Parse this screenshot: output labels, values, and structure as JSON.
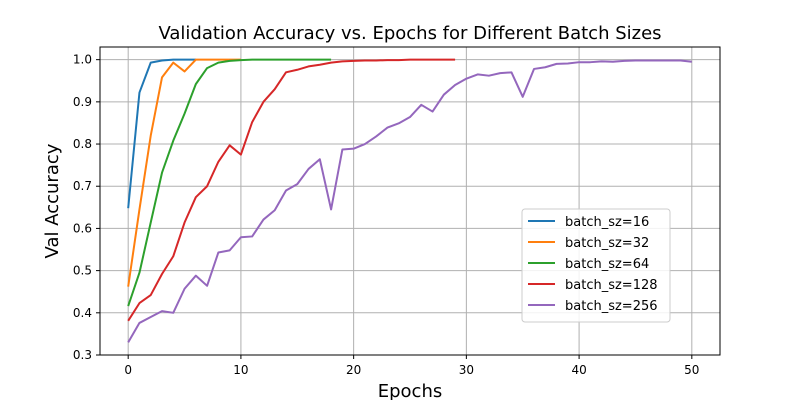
{
  "chart_data": {
    "type": "line",
    "title": "Validation Accuracy vs. Epochs for Different Batch Sizes",
    "xlabel": "Epochs",
    "ylabel": "Val Accuracy",
    "xlim": [
      -2.5,
      52.5
    ],
    "ylim": [
      0.3,
      1.03
    ],
    "xticks": [
      0,
      10,
      20,
      30,
      40,
      50
    ],
    "yticks": [
      0.3,
      0.4,
      0.5,
      0.6,
      0.7,
      0.8,
      0.9,
      1.0
    ],
    "grid": true,
    "legend_position": "center-right",
    "series": [
      {
        "name": "batch_sz=16",
        "color": "#1f77b4",
        "x": [
          0,
          1,
          2,
          3,
          4,
          5,
          6
        ],
        "values": [
          0.648,
          0.922,
          0.993,
          0.998,
          1.0,
          1.0,
          1.0
        ]
      },
      {
        "name": "batch_sz=32",
        "color": "#ff7f0e",
        "x": [
          0,
          1,
          2,
          3,
          4,
          5,
          6,
          7,
          8,
          9,
          10
        ],
        "values": [
          0.462,
          0.645,
          0.82,
          0.958,
          0.993,
          0.972,
          1.0,
          1.0,
          1.0,
          1.0,
          1.0
        ]
      },
      {
        "name": "batch_sz=64",
        "color": "#2ca02c",
        "x": [
          0,
          1,
          2,
          3,
          4,
          5,
          6,
          7,
          8,
          9,
          10,
          11,
          12,
          13,
          14,
          15,
          16,
          17,
          18
        ],
        "values": [
          0.416,
          0.495,
          0.614,
          0.732,
          0.808,
          0.872,
          0.942,
          0.98,
          0.993,
          0.997,
          0.999,
          1.0,
          1.0,
          1.0,
          1.0,
          1.0,
          1.0,
          1.0,
          1.0
        ]
      },
      {
        "name": "batch_sz=128",
        "color": "#d62728",
        "x": [
          0,
          1,
          2,
          3,
          4,
          5,
          6,
          7,
          8,
          9,
          10,
          11,
          12,
          13,
          14,
          15,
          16,
          17,
          18,
          19,
          20,
          21,
          22,
          23,
          24,
          25,
          26,
          27,
          28,
          29
        ],
        "values": [
          0.381,
          0.423,
          0.442,
          0.492,
          0.534,
          0.614,
          0.674,
          0.7,
          0.758,
          0.797,
          0.775,
          0.852,
          0.9,
          0.93,
          0.97,
          0.976,
          0.984,
          0.988,
          0.993,
          0.996,
          0.997,
          0.998,
          0.998,
          0.999,
          0.999,
          1.0,
          1.0,
          1.0,
          1.0,
          1.0
        ]
      },
      {
        "name": "batch_sz=256",
        "color": "#9467bd",
        "x": [
          0,
          1,
          2,
          3,
          4,
          5,
          6,
          7,
          8,
          9,
          10,
          11,
          12,
          13,
          14,
          15,
          16,
          17,
          18,
          19,
          20,
          21,
          22,
          23,
          24,
          25,
          26,
          27,
          28,
          29,
          30,
          31,
          32,
          33,
          34,
          35,
          36,
          37,
          38,
          39,
          40,
          41,
          42,
          43,
          44,
          45,
          46,
          47,
          48,
          49,
          50
        ],
        "values": [
          0.33,
          0.376,
          0.39,
          0.404,
          0.4,
          0.457,
          0.488,
          0.464,
          0.543,
          0.548,
          0.579,
          0.581,
          0.621,
          0.643,
          0.69,
          0.705,
          0.741,
          0.764,
          0.645,
          0.787,
          0.789,
          0.8,
          0.818,
          0.839,
          0.849,
          0.864,
          0.893,
          0.877,
          0.917,
          0.94,
          0.955,
          0.965,
          0.962,
          0.968,
          0.97,
          0.912,
          0.978,
          0.982,
          0.99,
          0.991,
          0.994,
          0.994,
          0.996,
          0.995,
          0.997,
          0.998,
          0.998,
          0.998,
          0.998,
          0.998,
          0.995
        ]
      }
    ]
  }
}
